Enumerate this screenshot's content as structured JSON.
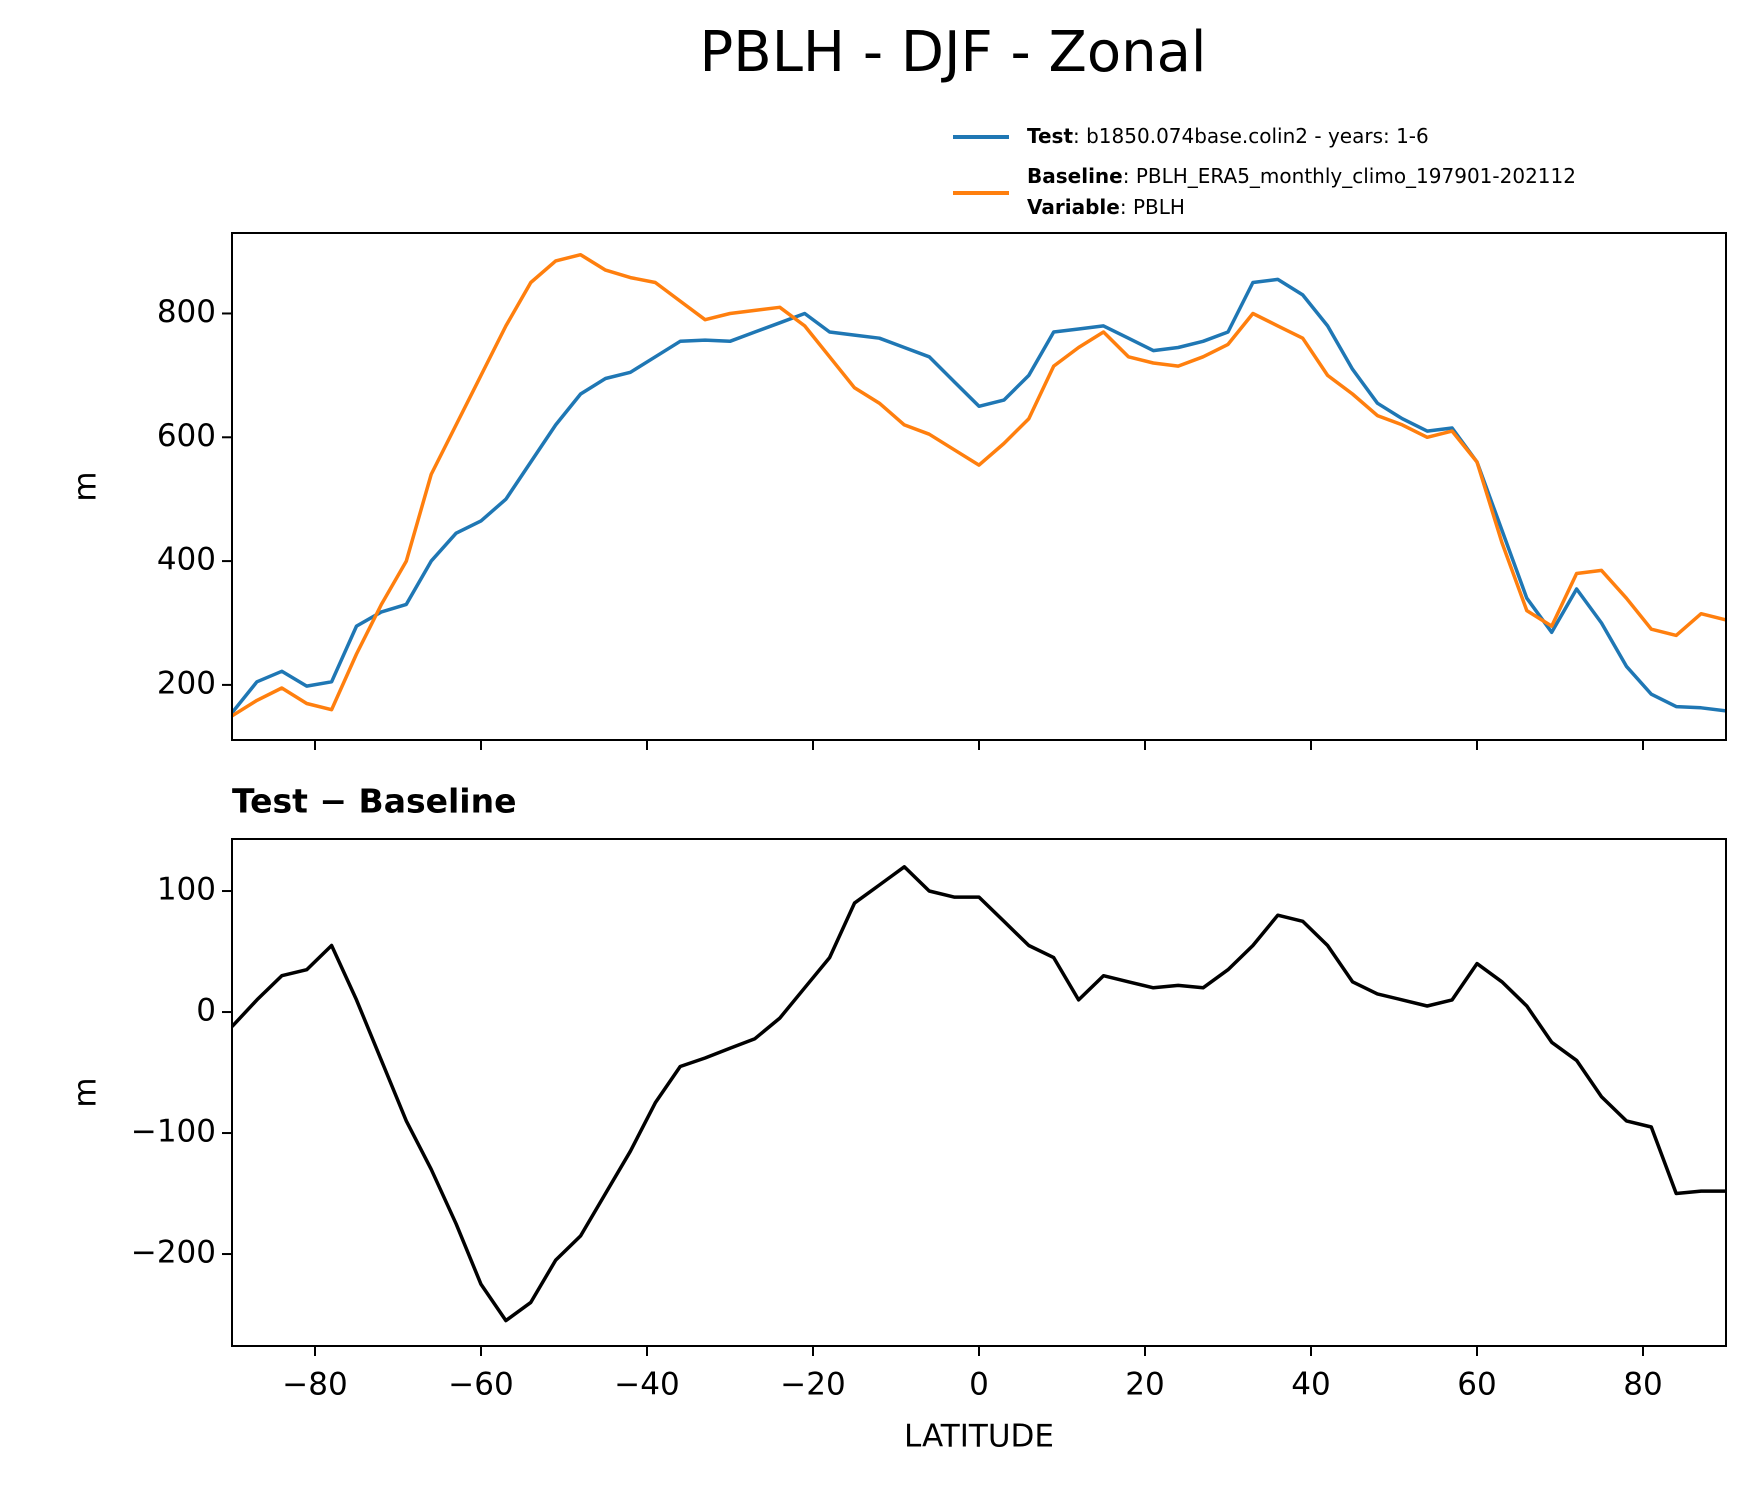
{
  "title": "PBLH - DJF - Zonal",
  "chart_data": [
    {
      "type": "line",
      "ylabel": "m",
      "xlim": [
        -90,
        90
      ],
      "xticks": [
        -80,
        -60,
        -40,
        -20,
        0,
        20,
        40,
        60,
        80
      ],
      "ylim": [
        111,
        930
      ],
      "yticks": [
        200,
        400,
        600,
        800
      ],
      "x": [
        -90,
        -87,
        -84,
        -81,
        -78,
        -75,
        -72,
        -69,
        -66,
        -63,
        -60,
        -57,
        -54,
        -51,
        -48,
        -45,
        -42,
        -39,
        -36,
        -33,
        -30,
        -27,
        -24,
        -21,
        -18,
        -15,
        -12,
        -9,
        -6,
        -3,
        0,
        3,
        6,
        9,
        12,
        15,
        18,
        21,
        24,
        27,
        30,
        33,
        36,
        39,
        42,
        45,
        48,
        51,
        54,
        57,
        60,
        63,
        66,
        69,
        72,
        75,
        78,
        81,
        84,
        87,
        90
      ],
      "series": [
        {
          "name": "Test",
          "label": ": b1850.074base.colin2 - years: 1-6",
          "color": "#1f77b4",
          "values": [
            155,
            205,
            222,
            198,
            205,
            295,
            318,
            330,
            400,
            445,
            465,
            500,
            560,
            620,
            670,
            695,
            705,
            730,
            755,
            757,
            755,
            770,
            785,
            800,
            770,
            765,
            760,
            745,
            730,
            690,
            650,
            660,
            700,
            770,
            775,
            780,
            760,
            740,
            745,
            755,
            770,
            850,
            855,
            830,
            780,
            710,
            655,
            630,
            610,
            615,
            560,
            450,
            340,
            285,
            355,
            300,
            230,
            185,
            165,
            163,
            158
          ]
        },
        {
          "name": "Baseline",
          "label": ": PBLH_ERA5_monthly_climo_197901-202112",
          "color": "#ff7f0e",
          "values": [
            150,
            175,
            195,
            170,
            160,
            250,
            330,
            400,
            540,
            620,
            700,
            780,
            850,
            885,
            895,
            870,
            858,
            850,
            820,
            790,
            800,
            805,
            810,
            780,
            730,
            680,
            655,
            620,
            605,
            580,
            555,
            590,
            630,
            715,
            745,
            770,
            730,
            720,
            715,
            730,
            750,
            800,
            780,
            760,
            700,
            670,
            635,
            620,
            600,
            610,
            560,
            430,
            320,
            295,
            380,
            385,
            340,
            290,
            280,
            315,
            305
          ]
        }
      ],
      "variable": {
        "name": "Variable",
        "label": ": PBLH"
      }
    },
    {
      "type": "line",
      "title": "Test − Baseline",
      "ylabel": "m",
      "xlabel": "LATITUDE",
      "xlim": [
        -90,
        90
      ],
      "xticks": [
        {
          "value": -80,
          "label": "−80"
        },
        {
          "value": -60,
          "label": "−60"
        },
        {
          "value": -40,
          "label": "−40"
        },
        {
          "value": -20,
          "label": "−20"
        },
        0,
        20,
        40,
        60,
        80
      ],
      "ylim": [
        -276,
        143
      ],
      "yticks": [
        {
          "value": -200,
          "label": "−200"
        },
        {
          "value": -100,
          "label": "−100"
        },
        0,
        100
      ],
      "x": [
        -90,
        -87,
        -84,
        -81,
        -78,
        -75,
        -72,
        -69,
        -66,
        -63,
        -60,
        -57,
        -54,
        -51,
        -48,
        -45,
        -42,
        -39,
        -36,
        -33,
        -30,
        -27,
        -24,
        -21,
        -18,
        -15,
        -12,
        -9,
        -6,
        -3,
        0,
        3,
        6,
        9,
        12,
        15,
        18,
        21,
        24,
        27,
        30,
        33,
        36,
        39,
        42,
        45,
        48,
        51,
        54,
        57,
        60,
        63,
        66,
        69,
        72,
        75,
        78,
        81,
        84,
        87,
        90
      ],
      "series": [
        {
          "color": "#000000",
          "values": [
            -12,
            10,
            30,
            35,
            55,
            10,
            -40,
            -90,
            -130,
            -175,
            -225,
            -255,
            -240,
            -205,
            -185,
            -150,
            -115,
            -75,
            -45,
            -38,
            -30,
            -22,
            -5,
            20,
            45,
            90,
            105,
            120,
            100,
            95,
            95,
            75,
            55,
            45,
            10,
            30,
            25,
            20,
            22,
            20,
            35,
            55,
            80,
            75,
            55,
            25,
            15,
            10,
            5,
            10,
            40,
            25,
            5,
            -25,
            -40,
            -70,
            -90,
            -95,
            -150,
            -148,
            -148
          ]
        }
      ]
    }
  ]
}
